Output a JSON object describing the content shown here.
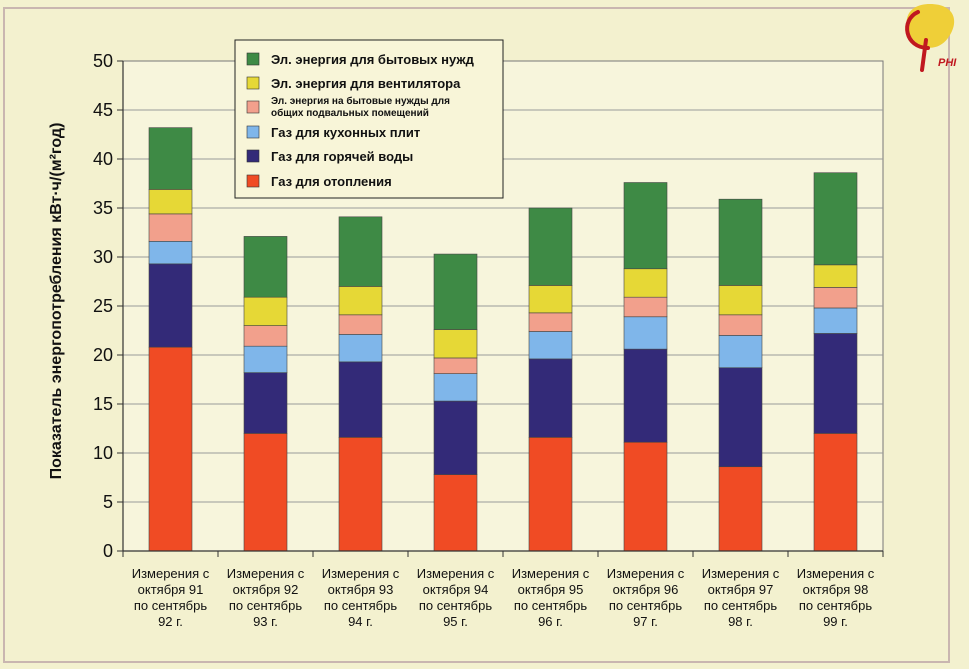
{
  "logo": {
    "text": "PHI"
  },
  "chart_data": {
    "type": "bar",
    "stacked": true,
    "title": "",
    "xlabel": "",
    "ylabel": "Показатель энергопотребления кВт·ч/(м²год)",
    "ylim": [
      0,
      50
    ],
    "yticks": [
      0,
      5,
      10,
      15,
      20,
      25,
      30,
      35,
      40,
      45,
      50
    ],
    "grid": true,
    "legend_position": "top-left",
    "categories": [
      [
        "Измерения с",
        "октября 91",
        "по сентябрь",
        "92 г."
      ],
      [
        "Измерения с",
        "октября 92",
        "по сентябрь",
        "93 г."
      ],
      [
        "Измерения с",
        "октября 93",
        "по сентябрь",
        "94 г."
      ],
      [
        "Измерения с",
        "октября 94",
        "по сентябрь",
        "95 г."
      ],
      [
        "Измерения с",
        "октября 95",
        "по сентябрь",
        "96 г."
      ],
      [
        "Измерения с",
        "октября 96",
        "по сентябрь",
        "97 г."
      ],
      [
        "Измерения с",
        "октября 97",
        "по сентябрь",
        "98 г."
      ],
      [
        "Измерения с",
        "октября 98",
        "по сентябрь",
        "99 г."
      ]
    ],
    "series": [
      {
        "name": "Газ для отопления",
        "color": "#f04b24",
        "values": [
          20.8,
          12.0,
          11.6,
          7.8,
          11.6,
          11.1,
          8.6,
          12.0
        ]
      },
      {
        "name": "Газ для горячей воды",
        "color": "#332a78",
        "values": [
          8.5,
          6.2,
          7.7,
          7.5,
          8.0,
          9.5,
          10.1,
          10.2
        ]
      },
      {
        "name": "Газ для кухонных плит",
        "color": "#7fb6ea",
        "values": [
          2.3,
          2.7,
          2.8,
          2.8,
          2.8,
          3.3,
          3.3,
          2.6
        ]
      },
      {
        "name": [
          "Эл. энергия на бытовые нужды для",
          "общих подвальных помещений"
        ],
        "color": "#f2a08c",
        "values": [
          2.8,
          2.1,
          2.0,
          1.6,
          1.9,
          2.0,
          2.1,
          2.1
        ]
      },
      {
        "name": "Эл. энергия для вентилятора",
        "color": "#e6d836",
        "values": [
          2.5,
          2.9,
          2.9,
          2.9,
          2.8,
          2.9,
          3.0,
          2.3
        ]
      },
      {
        "name": "Эл. энергия для бытовых нужд",
        "color": "#3e8a45",
        "values": [
          6.3,
          6.2,
          7.1,
          7.7,
          7.9,
          8.8,
          8.8,
          9.4
        ]
      }
    ]
  }
}
